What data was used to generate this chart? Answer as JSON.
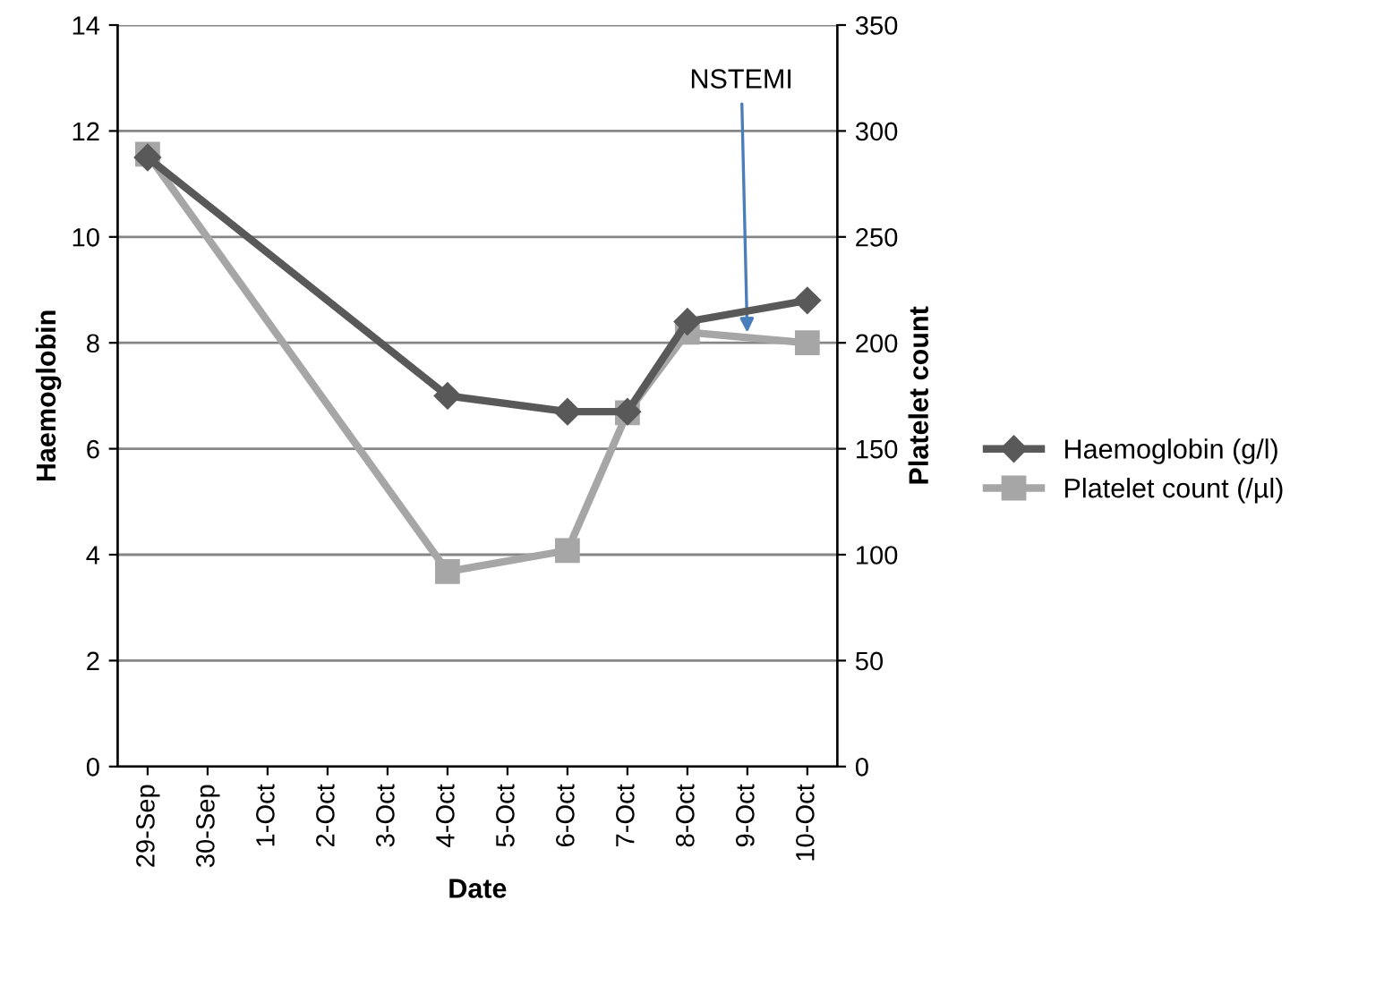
{
  "chart_data": {
    "type": "line",
    "xlabel": "Date",
    "ylabel": "Haemoglobin",
    "y2label": "Platelet count",
    "categories": [
      "29-Sep",
      "30-Sep",
      "1-Oct",
      "2-Oct",
      "3-Oct",
      "4-Oct",
      "5-Oct",
      "6-Oct",
      "7-Oct",
      "8-Oct",
      "9-Oct",
      "10-Oct"
    ],
    "series": [
      {
        "name": "Haemoglobin (g/l)",
        "color": "#595959",
        "marker": "diamond",
        "values": [
          11.5,
          null,
          null,
          null,
          null,
          7.0,
          null,
          6.7,
          6.7,
          8.4,
          null,
          8.8
        ]
      },
      {
        "name": "Platelet count (/µl)",
        "color": "#a6a6a6",
        "marker": "square",
        "axis": "y2",
        "values": [
          289,
          null,
          null,
          null,
          null,
          92,
          null,
          102,
          167,
          205,
          null,
          200
        ]
      }
    ],
    "ylim": [
      0,
      14
    ],
    "yticks": [
      0,
      2,
      4,
      6,
      8,
      10,
      12,
      14
    ],
    "y2lim": [
      0,
      350
    ],
    "y2ticks": [
      0,
      50,
      100,
      150,
      200,
      250,
      300,
      350
    ],
    "grid": "y",
    "legend": "right",
    "line_style": "solid",
    "annotations": [
      {
        "text": "NSTEMI",
        "x": "9-Oct",
        "y": 8.1
      }
    ]
  }
}
